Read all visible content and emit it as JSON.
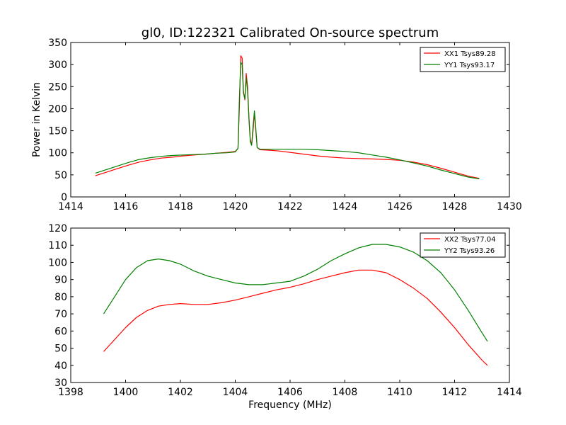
{
  "chart_data": [
    {
      "type": "line",
      "title": "gl0, ID:122321 Calibrated On-source spectrum",
      "xlabel": "",
      "ylabel": "Power in Kelvin",
      "xlim": [
        1414,
        1430
      ],
      "ylim": [
        0,
        350
      ],
      "xticks": [
        "1414",
        "1416",
        "1418",
        "1420",
        "1422",
        "1424",
        "1426",
        "1428",
        "1430"
      ],
      "yticks": [
        "0",
        "50",
        "100",
        "150",
        "200",
        "250",
        "300",
        "350"
      ],
      "grid": false,
      "legend_position": "top-right",
      "series": [
        {
          "name": "XX1 Tsys89.28",
          "color": "#ff0000",
          "points": [
            [
              1414.9,
              48
            ],
            [
              1415.3,
              56
            ],
            [
              1415.7,
              64
            ],
            [
              1416.1,
              72
            ],
            [
              1416.5,
              79
            ],
            [
              1416.9,
              84
            ],
            [
              1417.3,
              88
            ],
            [
              1417.7,
              90
            ],
            [
              1418.1,
              93
            ],
            [
              1418.5,
              95
            ],
            [
              1418.9,
              97
            ],
            [
              1419.3,
              99
            ],
            [
              1419.7,
              101
            ],
            [
              1420.0,
              103
            ],
            [
              1420.1,
              110
            ],
            [
              1420.15,
              200
            ],
            [
              1420.2,
              320
            ],
            [
              1420.25,
              315
            ],
            [
              1420.3,
              240
            ],
            [
              1420.35,
              220
            ],
            [
              1420.4,
              280
            ],
            [
              1420.45,
              250
            ],
            [
              1420.5,
              180
            ],
            [
              1420.55,
              130
            ],
            [
              1420.6,
              118
            ],
            [
              1420.65,
              150
            ],
            [
              1420.7,
              190
            ],
            [
              1420.75,
              150
            ],
            [
              1420.8,
              112
            ],
            [
              1420.9,
              107
            ],
            [
              1421.2,
              106
            ],
            [
              1421.6,
              104
            ],
            [
              1422.0,
              101
            ],
            [
              1422.5,
              97
            ],
            [
              1423.0,
              93
            ],
            [
              1423.5,
              90
            ],
            [
              1424.0,
              88
            ],
            [
              1424.5,
              87
            ],
            [
              1425.0,
              86
            ],
            [
              1425.5,
              85
            ],
            [
              1426.0,
              83
            ],
            [
              1426.5,
              79
            ],
            [
              1427.0,
              73
            ],
            [
              1427.5,
              65
            ],
            [
              1428.0,
              56
            ],
            [
              1428.5,
              47
            ],
            [
              1428.9,
              42
            ]
          ]
        },
        {
          "name": "YY1 Tsys93.17",
          "color": "#008000",
          "points": [
            [
              1414.9,
              54
            ],
            [
              1415.3,
              62
            ],
            [
              1415.7,
              70
            ],
            [
              1416.1,
              78
            ],
            [
              1416.5,
              85
            ],
            [
              1416.9,
              89
            ],
            [
              1417.3,
              92
            ],
            [
              1417.7,
              94
            ],
            [
              1418.1,
              95
            ],
            [
              1418.5,
              96
            ],
            [
              1418.9,
              97
            ],
            [
              1419.3,
              99
            ],
            [
              1419.7,
              100
            ],
            [
              1420.0,
              102
            ],
            [
              1420.1,
              110
            ],
            [
              1420.15,
              220
            ],
            [
              1420.2,
              305
            ],
            [
              1420.25,
              300
            ],
            [
              1420.3,
              235
            ],
            [
              1420.35,
              222
            ],
            [
              1420.4,
              270
            ],
            [
              1420.45,
              240
            ],
            [
              1420.5,
              175
            ],
            [
              1420.55,
              125
            ],
            [
              1420.6,
              117
            ],
            [
              1420.65,
              160
            ],
            [
              1420.7,
              195
            ],
            [
              1420.75,
              155
            ],
            [
              1420.8,
              112
            ],
            [
              1420.9,
              108
            ],
            [
              1421.2,
              108
            ],
            [
              1421.6,
              108
            ],
            [
              1422.0,
              108
            ],
            [
              1422.5,
              108
            ],
            [
              1423.0,
              107
            ],
            [
              1423.5,
              105
            ],
            [
              1424.0,
              103
            ],
            [
              1424.5,
              100
            ],
            [
              1425.0,
              95
            ],
            [
              1425.5,
              90
            ],
            [
              1426.0,
              84
            ],
            [
              1426.5,
              77
            ],
            [
              1427.0,
              70
            ],
            [
              1427.5,
              61
            ],
            [
              1428.0,
              53
            ],
            [
              1428.5,
              45
            ],
            [
              1428.9,
              41
            ]
          ]
        }
      ]
    },
    {
      "type": "line",
      "title": "",
      "xlabel": "Frequency (MHz)",
      "ylabel": "",
      "xlim": [
        1398,
        1414
      ],
      "ylim": [
        30,
        120
      ],
      "xticks": [
        "1398",
        "1400",
        "1402",
        "1404",
        "1406",
        "1408",
        "1410",
        "1412",
        "1414"
      ],
      "yticks": [
        "30",
        "40",
        "50",
        "60",
        "70",
        "80",
        "90",
        "100",
        "110",
        "120"
      ],
      "grid": false,
      "legend_position": "top-right",
      "series": [
        {
          "name": "XX2 Tsys77.04",
          "color": "#ff0000",
          "points": [
            [
              1399.2,
              48
            ],
            [
              1399.6,
              55
            ],
            [
              1400.0,
              62
            ],
            [
              1400.4,
              68
            ],
            [
              1400.8,
              72
            ],
            [
              1401.2,
              74.5
            ],
            [
              1401.6,
              75.5
            ],
            [
              1402.0,
              76
            ],
            [
              1402.5,
              75.5
            ],
            [
              1403.0,
              75.5
            ],
            [
              1403.5,
              76.5
            ],
            [
              1404.0,
              78
            ],
            [
              1404.5,
              80
            ],
            [
              1405.0,
              82
            ],
            [
              1405.5,
              84
            ],
            [
              1406.0,
              85.5
            ],
            [
              1406.5,
              87.5
            ],
            [
              1407.0,
              90
            ],
            [
              1407.5,
              92
            ],
            [
              1408.0,
              94
            ],
            [
              1408.5,
              95.5
            ],
            [
              1409.0,
              95.5
            ],
            [
              1409.5,
              94
            ],
            [
              1410.0,
              90
            ],
            [
              1410.5,
              85
            ],
            [
              1411.0,
              79
            ],
            [
              1411.5,
              71
            ],
            [
              1412.0,
              62
            ],
            [
              1412.5,
              52
            ],
            [
              1413.0,
              43
            ],
            [
              1413.2,
              40
            ]
          ]
        },
        {
          "name": "YY2 Tsys93.26",
          "color": "#008000",
          "points": [
            [
              1399.2,
              70
            ],
            [
              1399.6,
              80
            ],
            [
              1400.0,
              90
            ],
            [
              1400.4,
              97
            ],
            [
              1400.8,
              101
            ],
            [
              1401.2,
              102
            ],
            [
              1401.6,
              101
            ],
            [
              1402.0,
              99
            ],
            [
              1402.5,
              95
            ],
            [
              1403.0,
              92
            ],
            [
              1403.5,
              90
            ],
            [
              1404.0,
              88
            ],
            [
              1404.5,
              87
            ],
            [
              1405.0,
              87
            ],
            [
              1405.5,
              88
            ],
            [
              1406.0,
              89
            ],
            [
              1406.5,
              92
            ],
            [
              1407.0,
              96
            ],
            [
              1407.5,
              101
            ],
            [
              1408.0,
              105
            ],
            [
              1408.5,
              108.5
            ],
            [
              1409.0,
              110.5
            ],
            [
              1409.5,
              110.5
            ],
            [
              1410.0,
              109
            ],
            [
              1410.5,
              106
            ],
            [
              1411.0,
              101
            ],
            [
              1411.5,
              94
            ],
            [
              1412.0,
              84
            ],
            [
              1412.5,
              72
            ],
            [
              1413.0,
              59
            ],
            [
              1413.2,
              54
            ]
          ]
        }
      ]
    }
  ]
}
